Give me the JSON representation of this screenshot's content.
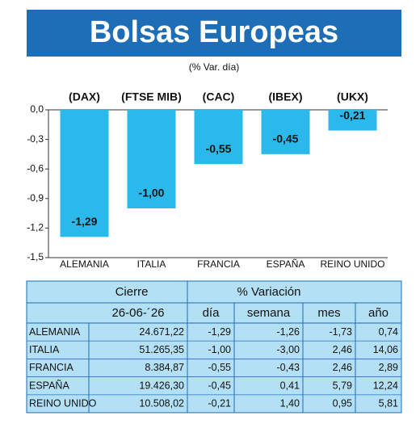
{
  "title": "Bolsas Europeas",
  "chart_data": {
    "type": "bar",
    "subtitle": "(% Var. día)",
    "categories": [
      "ALEMANIA",
      "ITALIA",
      "FRANCIA",
      "ESPAÑA",
      "REINO UNIDO"
    ],
    "index_labels": [
      "(DAX)",
      "(FTSE MIB)",
      "(CAC)",
      "(IBEX)",
      "(UKX)"
    ],
    "values": [
      -1.29,
      -1.0,
      -0.55,
      -0.45,
      -0.21
    ],
    "value_labels": [
      "-1,29",
      "-1,00",
      "-0,55",
      "-0,45",
      "-0,21"
    ],
    "color": "#2bb8ea",
    "ylim": [
      -1.5,
      0
    ],
    "yticks": [
      {
        "value": 0,
        "label": "0,0"
      },
      {
        "value": -0.3,
        "label": "-0,3"
      },
      {
        "value": -0.6,
        "label": "-0,6"
      },
      {
        "value": -0.9,
        "label": "-0,9"
      },
      {
        "value": -1.2,
        "label": "-1,2"
      },
      {
        "value": -1.5,
        "label": "-1,5"
      }
    ]
  },
  "table": {
    "header": [
      "Cierre",
      "% Variación"
    ],
    "subheader": [
      "26-06-´26",
      "día",
      "semana",
      "mes",
      "año"
    ],
    "rows": [
      [
        "ALEMANIA",
        "24.671,22",
        "-1,29",
        "-1,26",
        "-1,73",
        "0,74"
      ],
      [
        "ITALIA",
        "51.265,35",
        "-1,00",
        "-3,00",
        "2,46",
        "14,06"
      ],
      [
        "FRANCIA",
        "8.384,87",
        "-0,55",
        "-0,43",
        "2,46",
        "2,89"
      ],
      [
        "ESPAÑA",
        "19.426,30",
        "-0,45",
        "0,41",
        "5,79",
        "12,24"
      ],
      [
        "REINO UNIDO",
        "10.508,02",
        "-0,21",
        "1,40",
        "0,95",
        "5,81"
      ]
    ]
  }
}
